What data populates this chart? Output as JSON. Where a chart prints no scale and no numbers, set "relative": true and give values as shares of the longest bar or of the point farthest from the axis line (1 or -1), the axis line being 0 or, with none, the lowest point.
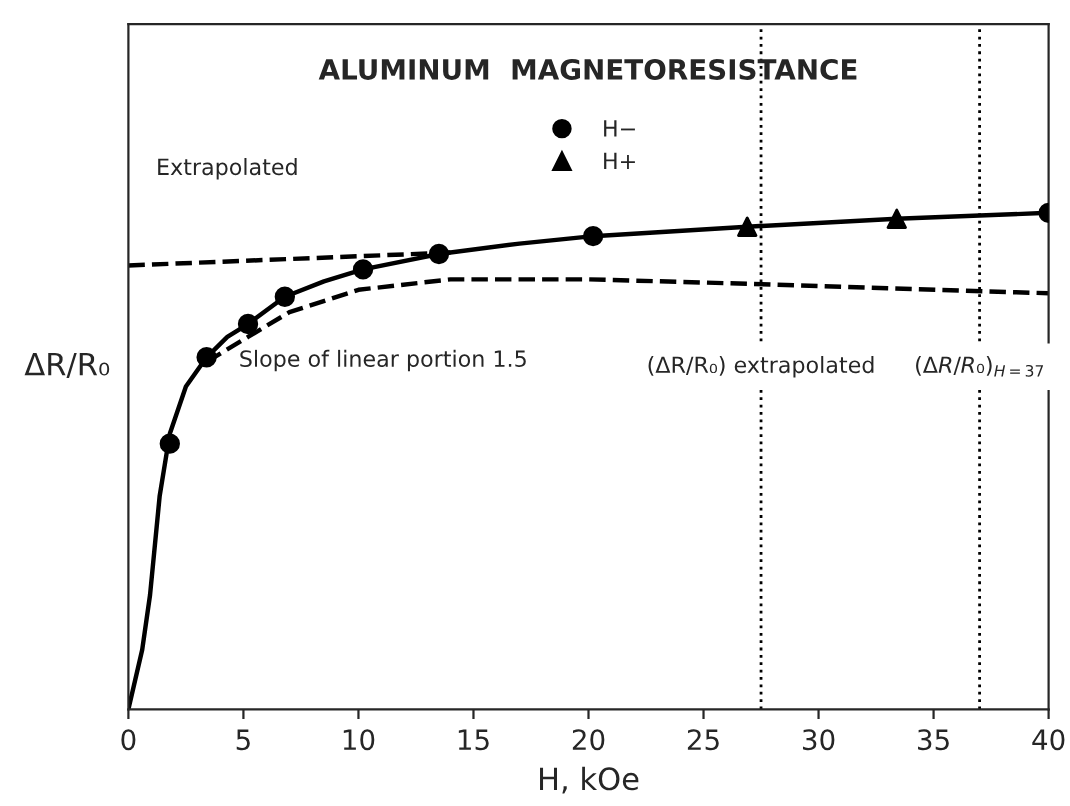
{
  "chart_data": {
    "type": "line",
    "title": "ALUMINUM  MAGNETORESISTANCE",
    "xlabel": "H, kOe",
    "ylabel": "ΔR/R₀",
    "relative": true,
    "xlim": [
      0,
      40
    ],
    "xticks": [
      0,
      5,
      10,
      15,
      20,
      25,
      30,
      35,
      40
    ],
    "grid": false,
    "legend": "top",
    "series": [
      {
        "color": "#000000",
        "line_style": "solid",
        "marker": "none",
        "x": [
          0,
          0.3,
          0.6,
          0.94,
          1.36,
          1.8,
          2.5,
          3.4,
          4.3,
          5.2,
          6.8,
          8.5,
          10.2,
          13.5,
          17,
          20.2,
          26.9,
          33.4,
          40
        ],
        "values": [
          0,
          0.06,
          0.12,
          0.23,
          0.43,
          0.555,
          0.65,
          0.709,
          0.75,
          0.776,
          0.831,
          0.862,
          0.886,
          0.917,
          0.938,
          0.953,
          0.972,
          0.988,
          1.0
        ]
      },
      {
        "type": "line",
        "color": "#000000",
        "line_style": "dashed",
        "marker": "none",
        "x": [
          0,
          14
        ],
        "values": [
          0.894,
          0.92
        ]
      },
      {
        "type": "line",
        "color": "#000000",
        "line_style": "dashed",
        "marker": "none",
        "x": [
          3.4,
          5.2,
          7,
          10,
          14,
          20,
          27,
          33,
          40
        ],
        "values": [
          0.7,
          0.75,
          0.8,
          0.845,
          0.866,
          0.866,
          0.857,
          0.848,
          0.838
        ]
      },
      {
        "type": "scatter",
        "name": "H−",
        "color": "#000000",
        "marker": "circle",
        "x": [
          1.8,
          3.4,
          5.2,
          6.8,
          10.2,
          13.5,
          20.2,
          40
        ],
        "values": [
          0.535,
          0.709,
          0.776,
          0.831,
          0.886,
          0.917,
          0.953,
          1.0
        ]
      },
      {
        "type": "scatter",
        "name": "H+",
        "color": "#000000",
        "marker": "triangle",
        "x": [
          26.9,
          33.4
        ],
        "values": [
          0.972,
          0.988
        ]
      }
    ],
    "ref_lines": [
      {
        "axis": "x",
        "value": 27.5,
        "label": "(ΔR/R₀) extrapolated",
        "line_style": "dotted"
      },
      {
        "axis": "x",
        "value": 37,
        "label": "(ΔR/R₀)$_{H=37}$",
        "line_style": "dotted"
      }
    ],
    "annotations": [
      "Extrapolated",
      "Slope of linear portion 1.5"
    ]
  }
}
